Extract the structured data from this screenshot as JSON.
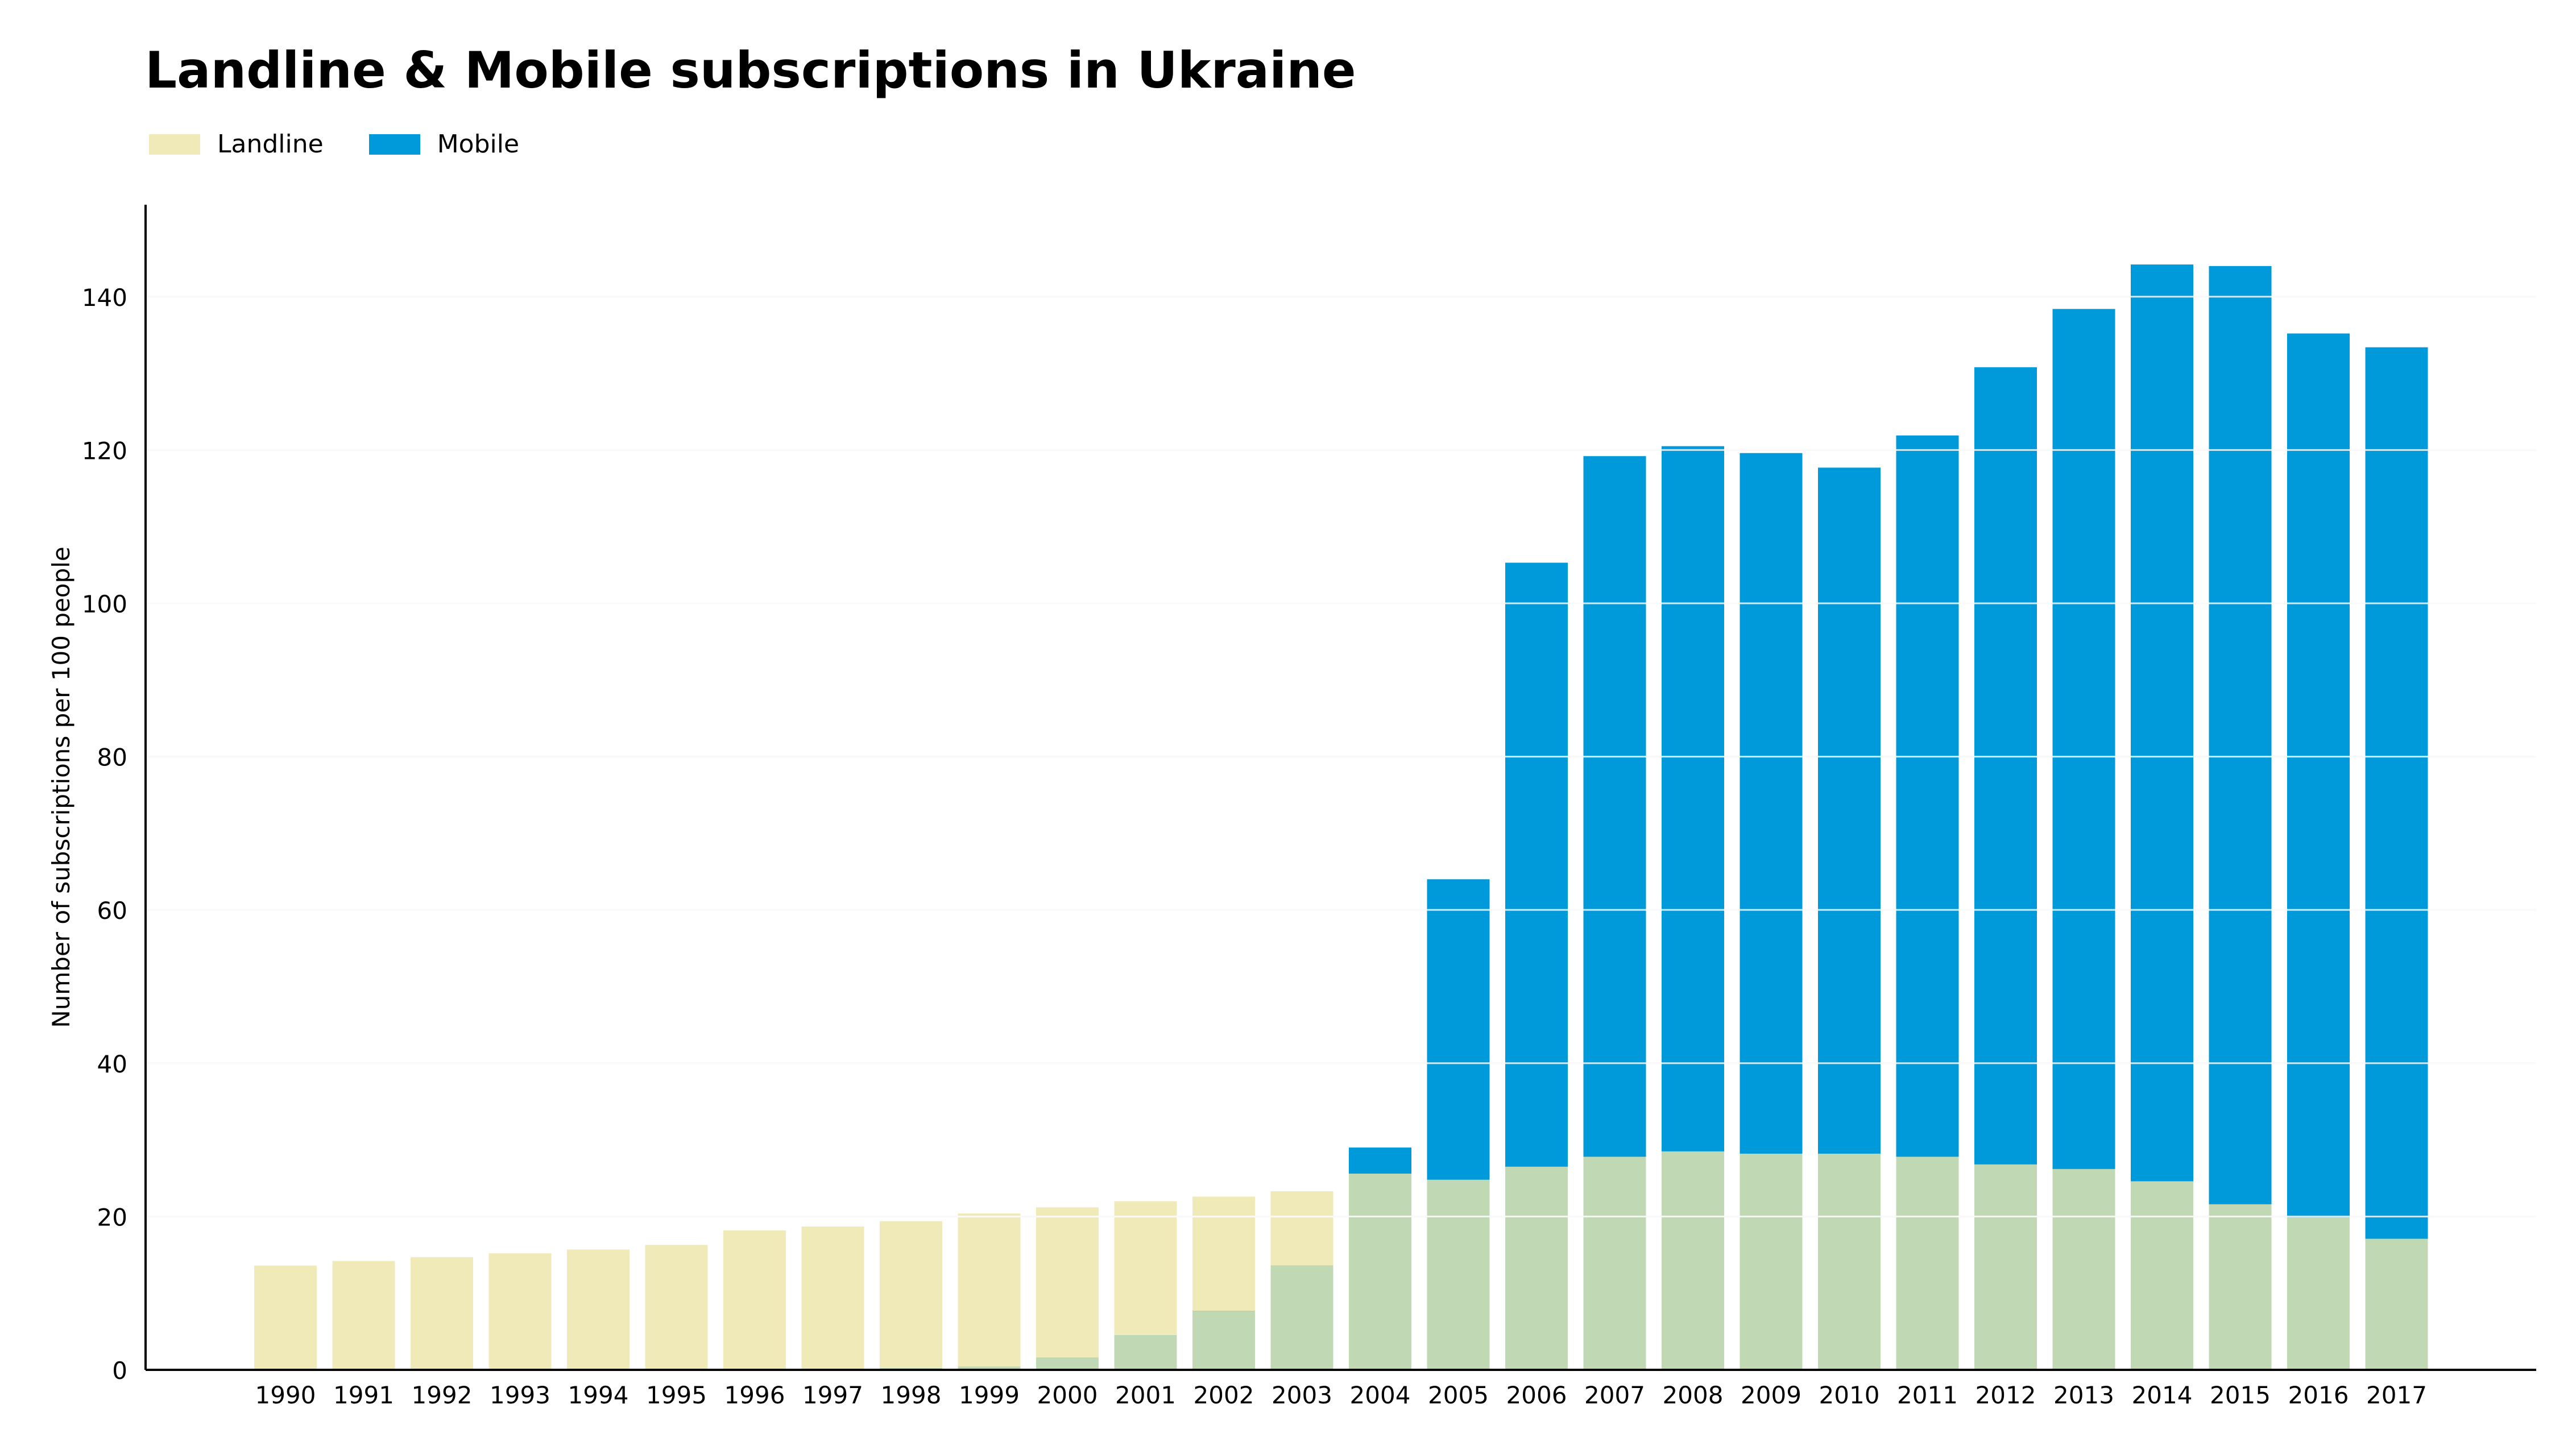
{
  "chart_data": {
    "type": "bar",
    "title": "Landline & Mobile subscriptions in Ukraine",
    "xlabel": "",
    "ylabel": "Number of subscriptions per 100 people",
    "categories": [
      "1990",
      "1991",
      "1992",
      "1993",
      "1994",
      "1995",
      "1996",
      "1997",
      "1998",
      "1999",
      "2000",
      "2001",
      "2002",
      "2003",
      "2004",
      "2005",
      "2006",
      "2007",
      "2008",
      "2009",
      "2010",
      "2011",
      "2012",
      "2013",
      "2014",
      "2015",
      "2016",
      "2017"
    ],
    "series": [
      {
        "name": "Landline",
        "color": "#f0eab8",
        "values": [
          13.6,
          14.2,
          14.7,
          15.2,
          15.7,
          16.3,
          18.2,
          18.7,
          19.4,
          20.4,
          21.2,
          22.0,
          22.6,
          23.3,
          25.6,
          24.8,
          26.5,
          27.8,
          28.5,
          28.2,
          28.2,
          27.8,
          26.8,
          26.2,
          24.6,
          21.6,
          19.9,
          17.1
        ]
      },
      {
        "name": "Mobile",
        "color": "#009ada",
        "values": [
          0,
          0,
          0,
          0,
          0,
          0.1,
          0.1,
          0.1,
          0.2,
          0.4,
          1.6,
          4.5,
          7.7,
          13.6,
          29.0,
          64.0,
          105.3,
          119.2,
          120.5,
          119.6,
          117.7,
          121.9,
          130.8,
          138.4,
          144.2,
          144.0,
          135.2,
          133.4
        ]
      }
    ],
    "overlap_color": "#c0d9b4",
    "ylim": [
      0,
      152
    ],
    "yticks": [
      0,
      20,
      40,
      60,
      80,
      100,
      120,
      140
    ],
    "grid": true,
    "legend": "top-left"
  }
}
